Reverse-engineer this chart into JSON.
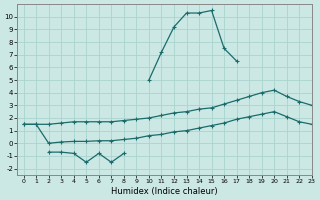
{
  "xlabel": "Humidex (Indice chaleur)",
  "background_color": "#cce8e4",
  "grid_color": "#aad4ce",
  "line_color": "#1a6b6b",
  "x_humidex": [
    0,
    1,
    2,
    3,
    4,
    5,
    6,
    7,
    8,
    9,
    10,
    11,
    12,
    13,
    14,
    15,
    16,
    17,
    18,
    19,
    20,
    21,
    22,
    23
  ],
  "curve_main_y": [
    null,
    null,
    -0.7,
    -0.7,
    -0.8,
    -1.5,
    -0.8,
    -1.5,
    -0.8,
    null,
    5.0,
    7.2,
    9.2,
    10.3,
    10.3,
    10.5,
    7.5,
    6.5,
    null,
    null,
    null,
    null,
    null,
    null
  ],
  "line_upper_y": [
    1.5,
    1.5,
    1.5,
    1.6,
    1.7,
    1.7,
    1.7,
    1.7,
    1.8,
    1.9,
    2.0,
    2.2,
    2.4,
    2.5,
    2.7,
    2.8,
    3.1,
    3.4,
    3.7,
    4.0,
    4.2,
    3.7,
    3.3,
    3.0
  ],
  "line_lower_y": [
    1.5,
    1.5,
    0.0,
    0.1,
    0.15,
    0.15,
    0.2,
    0.2,
    0.3,
    0.4,
    0.6,
    0.7,
    0.9,
    1.0,
    1.2,
    1.4,
    1.6,
    1.9,
    2.1,
    2.3,
    2.5,
    2.1,
    1.7,
    1.5
  ],
  "ylim": [
    -2.5,
    11
  ],
  "yticks": [
    -2,
    -1,
    0,
    1,
    2,
    3,
    4,
    5,
    6,
    7,
    8,
    9,
    10
  ],
  "xlim": [
    -0.5,
    23
  ],
  "xticks": [
    0,
    1,
    2,
    3,
    4,
    5,
    6,
    7,
    8,
    9,
    10,
    11,
    12,
    13,
    14,
    15,
    16,
    17,
    18,
    19,
    20,
    21,
    22,
    23
  ]
}
